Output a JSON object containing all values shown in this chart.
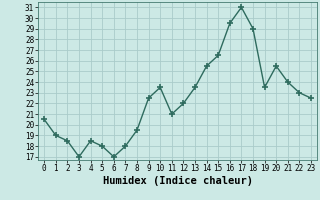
{
  "x": [
    0,
    1,
    2,
    3,
    4,
    5,
    6,
    7,
    8,
    9,
    10,
    11,
    12,
    13,
    14,
    15,
    16,
    17,
    18,
    19,
    20,
    21,
    22,
    23
  ],
  "y": [
    20.5,
    19.0,
    18.5,
    17.0,
    18.5,
    18.0,
    17.0,
    18.0,
    19.5,
    22.5,
    23.5,
    21.0,
    22.0,
    23.5,
    25.5,
    26.5,
    29.5,
    31.0,
    29.0,
    23.5,
    25.5,
    24.0,
    23.0,
    22.5
  ],
  "xlabel": "Humidex (Indice chaleur)",
  "ylim_min": 17,
  "ylim_max": 32,
  "xlim_min": -0.5,
  "xlim_max": 23.5,
  "yticks": [
    17,
    18,
    19,
    20,
    21,
    22,
    23,
    24,
    25,
    26,
    27,
    28,
    29,
    30,
    31
  ],
  "xticks": [
    0,
    1,
    2,
    3,
    4,
    5,
    6,
    7,
    8,
    9,
    10,
    11,
    12,
    13,
    14,
    15,
    16,
    17,
    18,
    19,
    20,
    21,
    22,
    23
  ],
  "line_color": "#2e6b5e",
  "marker": "+",
  "marker_size": 4,
  "bg_color": "#cce9e5",
  "grid_color": "#aaccca",
  "tick_fontsize": 5.5,
  "xlabel_fontsize": 7.5,
  "line_width": 1.0
}
